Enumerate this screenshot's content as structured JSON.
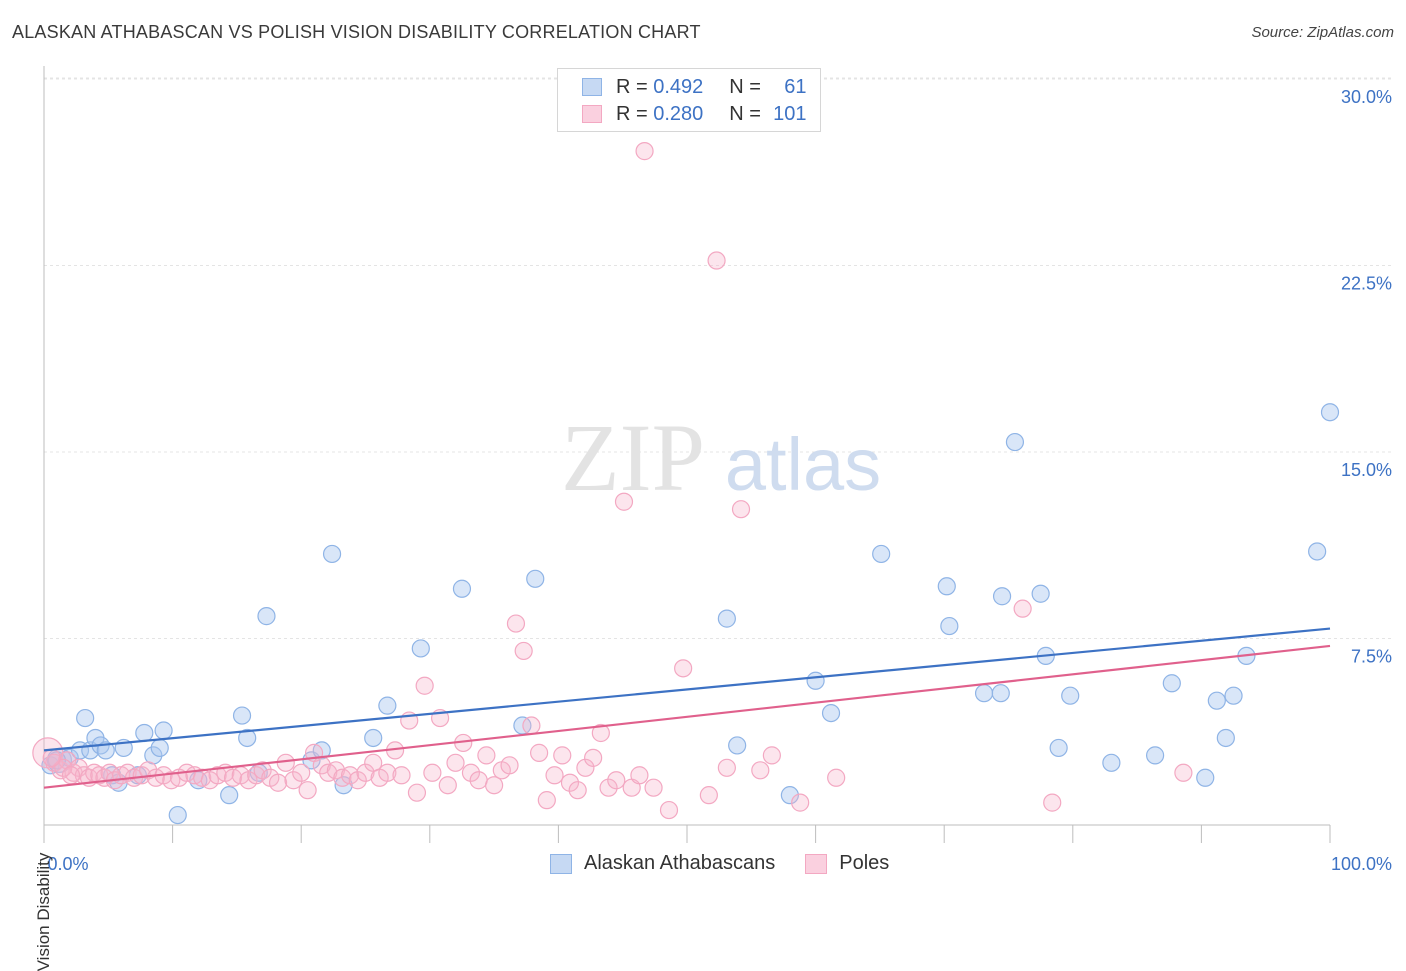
{
  "title": "ALASKAN ATHABASCAN VS POLISH VISION DISABILITY CORRELATION CHART",
  "source": "Source: ZipAtlas.com",
  "watermark": {
    "zip": "ZIP",
    "atlas": "atlas"
  },
  "legend": {
    "rows": [
      {
        "r_label": "R =",
        "r_value": "0.492",
        "n_label": "N =",
        "n_value": "61",
        "color": "#8fb4e6"
      },
      {
        "r_label": "R =",
        "r_value": "0.280",
        "n_label": "N =",
        "n_value": "101",
        "color": "#f3a8c2"
      }
    ]
  },
  "bottom_legend": [
    {
      "name": "Alaskan Athabascans",
      "color": "#8fb4e6"
    },
    {
      "name": "Poles",
      "color": "#f3a8c2"
    }
  ],
  "chart_data": {
    "type": "scatter",
    "title": "ALASKAN ATHABASCAN VS POLISH VISION DISABILITY CORRELATION CHART",
    "xlabel": "",
    "ylabel": "Vision Disability",
    "xlim": [
      0,
      100
    ],
    "ylim": [
      0,
      31
    ],
    "x_tick_labels": [
      "0.0%",
      "100.0%"
    ],
    "y_ticks": [
      7.5,
      15.0,
      22.5,
      30.0
    ],
    "y_tick_labels": [
      "7.5%",
      "15.0%",
      "22.5%",
      "30.0%"
    ],
    "grid": true,
    "legend_position": "top-center",
    "series": [
      {
        "name": "Alaskan Athabascans",
        "color": "#8fb4e6",
        "line_color": "#3d72c4",
        "trend": {
          "x": [
            0,
            100
          ],
          "y": [
            3.0,
            7.9
          ]
        },
        "points": [
          [
            0.5,
            2.4
          ],
          [
            1.2,
            2.6
          ],
          [
            2.0,
            2.7
          ],
          [
            2.8,
            3.0
          ],
          [
            3.2,
            4.3
          ],
          [
            3.6,
            3.0
          ],
          [
            4.0,
            3.5
          ],
          [
            4.4,
            3.2
          ],
          [
            4.8,
            3.0
          ],
          [
            5.3,
            2.0
          ],
          [
            5.8,
            1.7
          ],
          [
            6.2,
            3.1
          ],
          [
            7.3,
            2.0
          ],
          [
            7.8,
            3.7
          ],
          [
            8.5,
            2.8
          ],
          [
            9.0,
            3.1
          ],
          [
            9.3,
            3.8
          ],
          [
            10.4,
            0.4
          ],
          [
            12.0,
            1.8
          ],
          [
            14.4,
            1.2
          ],
          [
            15.4,
            4.4
          ],
          [
            15.8,
            3.5
          ],
          [
            16.7,
            2.1
          ],
          [
            17.3,
            8.4
          ],
          [
            20.8,
            2.6
          ],
          [
            21.6,
            3.0
          ],
          [
            22.4,
            10.9
          ],
          [
            23.3,
            1.6
          ],
          [
            25.6,
            3.5
          ],
          [
            26.7,
            4.8
          ],
          [
            29.3,
            7.1
          ],
          [
            32.5,
            9.5
          ],
          [
            37.2,
            4.0
          ],
          [
            38.2,
            9.9
          ],
          [
            53.1,
            8.3
          ],
          [
            53.9,
            3.2
          ],
          [
            58.0,
            1.2
          ],
          [
            60.0,
            5.8
          ],
          [
            61.2,
            4.5
          ],
          [
            65.1,
            10.9
          ],
          [
            70.2,
            9.6
          ],
          [
            70.4,
            8.0
          ],
          [
            73.1,
            5.3
          ],
          [
            74.4,
            5.3
          ],
          [
            74.5,
            9.2
          ],
          [
            75.5,
            15.4
          ],
          [
            77.5,
            9.3
          ],
          [
            77.9,
            6.8
          ],
          [
            78.9,
            3.1
          ],
          [
            79.8,
            5.2
          ],
          [
            83.0,
            2.5
          ],
          [
            86.4,
            2.8
          ],
          [
            87.7,
            5.7
          ],
          [
            90.3,
            1.9
          ],
          [
            91.2,
            5.0
          ],
          [
            91.9,
            3.5
          ],
          [
            92.5,
            5.2
          ],
          [
            93.5,
            6.8
          ],
          [
            99.0,
            11.0
          ],
          [
            100.0,
            16.6
          ],
          [
            1.0,
            2.6
          ]
        ]
      },
      {
        "name": "Poles",
        "color": "#f3a8c2",
        "line_color": "#e0608c",
        "trend": {
          "x": [
            0,
            100
          ],
          "y": [
            1.5,
            7.2
          ]
        },
        "points": [
          [
            0.3,
            2.9
          ],
          [
            0.8,
            2.5
          ],
          [
            1.3,
            2.2
          ],
          [
            1.8,
            2.6
          ],
          [
            2.3,
            2.1
          ],
          [
            2.7,
            2.3
          ],
          [
            3.1,
            2.0
          ],
          [
            3.5,
            1.9
          ],
          [
            3.9,
            2.1
          ],
          [
            4.3,
            2.0
          ],
          [
            4.7,
            1.9
          ],
          [
            5.1,
            2.1
          ],
          [
            5.5,
            1.8
          ],
          [
            6.0,
            2.0
          ],
          [
            6.5,
            2.1
          ],
          [
            7.0,
            1.9
          ],
          [
            7.6,
            2.0
          ],
          [
            8.1,
            2.2
          ],
          [
            8.7,
            1.9
          ],
          [
            9.3,
            2.0
          ],
          [
            9.9,
            1.8
          ],
          [
            10.5,
            1.9
          ],
          [
            11.1,
            2.1
          ],
          [
            11.7,
            2.0
          ],
          [
            12.3,
            1.9
          ],
          [
            12.9,
            1.8
          ],
          [
            13.5,
            2.0
          ],
          [
            14.1,
            2.1
          ],
          [
            14.7,
            1.9
          ],
          [
            15.3,
            2.0
          ],
          [
            15.9,
            1.8
          ],
          [
            16.5,
            2.0
          ],
          [
            17.0,
            2.2
          ],
          [
            17.6,
            1.9
          ],
          [
            18.2,
            1.7
          ],
          [
            18.8,
            2.5
          ],
          [
            19.4,
            1.8
          ],
          [
            20.0,
            2.1
          ],
          [
            20.5,
            1.4
          ],
          [
            21.0,
            2.9
          ],
          [
            21.6,
            2.4
          ],
          [
            22.1,
            2.1
          ],
          [
            22.7,
            2.2
          ],
          [
            23.2,
            1.9
          ],
          [
            23.8,
            2.0
          ],
          [
            24.4,
            1.8
          ],
          [
            25.0,
            2.1
          ],
          [
            25.6,
            2.5
          ],
          [
            26.1,
            1.9
          ],
          [
            26.7,
            2.1
          ],
          [
            27.3,
            3.0
          ],
          [
            27.8,
            2.0
          ],
          [
            28.4,
            4.2
          ],
          [
            29.0,
            1.3
          ],
          [
            29.6,
            5.6
          ],
          [
            30.2,
            2.1
          ],
          [
            30.8,
            4.3
          ],
          [
            31.4,
            1.6
          ],
          [
            32.0,
            2.5
          ],
          [
            32.6,
            3.3
          ],
          [
            33.2,
            2.1
          ],
          [
            33.8,
            1.8
          ],
          [
            34.4,
            2.8
          ],
          [
            35.0,
            1.6
          ],
          [
            35.6,
            2.2
          ],
          [
            36.2,
            2.4
          ],
          [
            36.7,
            8.1
          ],
          [
            37.3,
            7.0
          ],
          [
            37.9,
            4.0
          ],
          [
            38.5,
            2.9
          ],
          [
            39.1,
            1.0
          ],
          [
            39.7,
            2.0
          ],
          [
            40.3,
            2.8
          ],
          [
            40.9,
            1.7
          ],
          [
            41.5,
            1.4
          ],
          [
            42.1,
            2.3
          ],
          [
            42.7,
            2.7
          ],
          [
            43.3,
            3.7
          ],
          [
            43.9,
            1.5
          ],
          [
            44.5,
            1.8
          ],
          [
            45.1,
            13.0
          ],
          [
            45.7,
            1.5
          ],
          [
            46.3,
            2.0
          ],
          [
            46.7,
            27.1
          ],
          [
            47.4,
            1.5
          ],
          [
            48.6,
            0.6
          ],
          [
            49.7,
            6.3
          ],
          [
            51.7,
            1.2
          ],
          [
            52.3,
            22.7
          ],
          [
            53.1,
            2.3
          ],
          [
            54.2,
            12.7
          ],
          [
            55.7,
            2.2
          ],
          [
            56.6,
            2.8
          ],
          [
            58.8,
            0.9
          ],
          [
            61.6,
            1.9
          ],
          [
            76.1,
            8.7
          ],
          [
            78.4,
            0.9
          ],
          [
            88.6,
            2.1
          ],
          [
            1.5,
            2.3
          ],
          [
            2.1,
            2.0
          ],
          [
            0.6,
            2.7
          ]
        ]
      }
    ]
  }
}
